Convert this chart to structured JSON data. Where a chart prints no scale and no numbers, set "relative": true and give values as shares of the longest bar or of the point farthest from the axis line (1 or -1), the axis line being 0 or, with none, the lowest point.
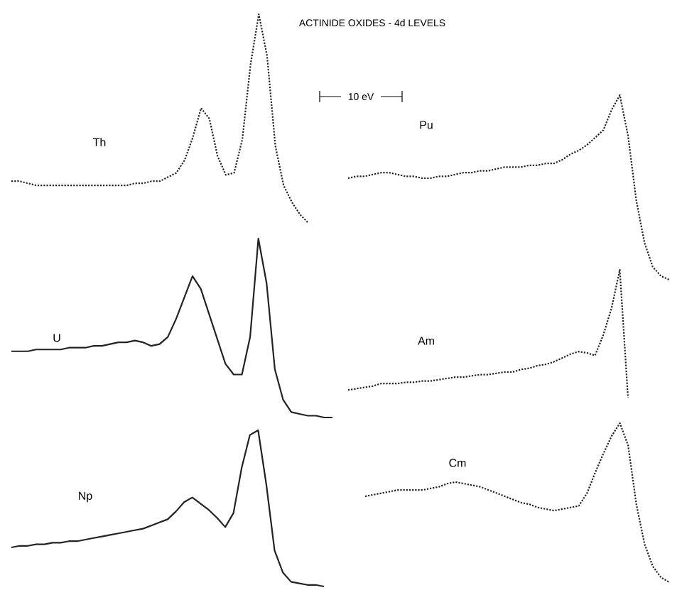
{
  "chart_data": [
    {
      "type": "line",
      "title": "ACTINIDE OXIDES - 4d LEVELS",
      "annotations": [
        "10 eV"
      ],
      "relative": true,
      "tick_labels": false,
      "line_style": "dotted",
      "categories": [
        null,
        null,
        null,
        null,
        null,
        null,
        null,
        null,
        null,
        null,
        null,
        null,
        null,
        null,
        null,
        null,
        null,
        null,
        null,
        null,
        null,
        null,
        null,
        null,
        null,
        null,
        null,
        null,
        null,
        null,
        null,
        null,
        null,
        null,
        null,
        null,
        null
      ],
      "series": [
        {
          "name": "Th",
          "color": "#222222",
          "values": [
            0.2,
            0.2,
            0.19,
            0.18,
            0.18,
            0.18,
            0.18,
            0.18,
            0.18,
            0.18,
            0.18,
            0.18,
            0.18,
            0.18,
            0.18,
            0.19,
            0.19,
            0.2,
            0.2,
            0.22,
            0.24,
            0.3,
            0.41,
            0.55,
            0.5,
            0.32,
            0.23,
            0.24,
            0.4,
            0.76,
            1,
            0.8,
            0.37,
            0.18,
            0.1,
            0.04,
            0
          ]
        }
      ]
    },
    {
      "type": "line",
      "relative": true,
      "tick_labels": false,
      "line_style": "solid",
      "categories": [
        null,
        null,
        null,
        null,
        null,
        null,
        null,
        null,
        null,
        null,
        null,
        null,
        null,
        null,
        null,
        null,
        null,
        null,
        null,
        null,
        null,
        null,
        null,
        null,
        null,
        null,
        null,
        null,
        null,
        null,
        null,
        null,
        null,
        null,
        null,
        null,
        null,
        null,
        null,
        null
      ],
      "series": [
        {
          "name": "U",
          "color": "#222222",
          "values": [
            0.37,
            0.37,
            0.37,
            0.38,
            0.38,
            0.38,
            0.38,
            0.39,
            0.39,
            0.39,
            0.4,
            0.4,
            0.41,
            0.42,
            0.42,
            0.43,
            0.42,
            0.4,
            0.41,
            0.45,
            0.55,
            0.67,
            0.79,
            0.72,
            0.58,
            0.44,
            0.3,
            0.24,
            0.24,
            0.45,
            1,
            0.75,
            0.27,
            0.1,
            0.03,
            0.02,
            0.01,
            0.01,
            0,
            0
          ]
        }
      ]
    },
    {
      "type": "line",
      "relative": true,
      "tick_labels": false,
      "line_style": "solid",
      "categories": [
        null,
        null,
        null,
        null,
        null,
        null,
        null,
        null,
        null,
        null,
        null,
        null,
        null,
        null,
        null,
        null,
        null,
        null,
        null,
        null,
        null,
        null,
        null,
        null,
        null,
        null,
        null,
        null,
        null,
        null,
        null,
        null,
        null,
        null,
        null,
        null,
        null,
        null,
        null
      ],
      "series": [
        {
          "name": "Np",
          "color": "#222222",
          "values": [
            0.25,
            0.26,
            0.26,
            0.27,
            0.27,
            0.28,
            0.28,
            0.29,
            0.29,
            0.3,
            0.31,
            0.32,
            0.33,
            0.34,
            0.35,
            0.36,
            0.37,
            0.39,
            0.41,
            0.43,
            0.48,
            0.54,
            0.57,
            0.53,
            0.49,
            0.44,
            0.38,
            0.47,
            0.76,
            0.97,
            1,
            0.65,
            0.23,
            0.09,
            0.03,
            0.02,
            0.01,
            0.01,
            0
          ]
        }
      ]
    },
    {
      "type": "line",
      "relative": true,
      "tick_labels": false,
      "line_style": "dotted",
      "categories": [
        null,
        null,
        null,
        null,
        null,
        null,
        null,
        null,
        null,
        null,
        null,
        null,
        null,
        null,
        null,
        null,
        null,
        null,
        null,
        null,
        null,
        null,
        null,
        null,
        null,
        null,
        null,
        null,
        null,
        null,
        null,
        null,
        null,
        null,
        null,
        null,
        null,
        null,
        null,
        null
      ],
      "series": [
        {
          "name": "Pu",
          "color": "#222222",
          "values": [
            0.55,
            0.56,
            0.56,
            0.57,
            0.58,
            0.58,
            0.57,
            0.56,
            0.56,
            0.55,
            0.55,
            0.56,
            0.56,
            0.57,
            0.58,
            0.58,
            0.59,
            0.59,
            0.6,
            0.61,
            0.61,
            0.61,
            0.62,
            0.62,
            0.63,
            0.63,
            0.65,
            0.68,
            0.7,
            0.73,
            0.77,
            0.81,
            0.92,
            1,
            0.78,
            0.43,
            0.2,
            0.07,
            0.02,
            0
          ]
        }
      ]
    },
    {
      "type": "line",
      "relative": true,
      "tick_labels": false,
      "line_style": "dotted",
      "categories": [
        null,
        null,
        null,
        null,
        null,
        null,
        null,
        null,
        null,
        null,
        null,
        null,
        null,
        null,
        null,
        null,
        null,
        null,
        null,
        null,
        null,
        null,
        null,
        null,
        null,
        null,
        null,
        null,
        null,
        null,
        null,
        null,
        null,
        null,
        null
      ],
      "series": [
        {
          "name": "Am",
          "color": "#222222",
          "values": [
            0.06,
            0.07,
            0.08,
            0.09,
            0.11,
            0.11,
            0.11,
            0.12,
            0.12,
            0.13,
            0.13,
            0.14,
            0.15,
            0.16,
            0.16,
            0.17,
            0.18,
            0.18,
            0.19,
            0.2,
            0.2,
            0.22,
            0.23,
            0.25,
            0.26,
            0.28,
            0.31,
            0.34,
            0.36,
            0.35,
            0.33,
            0.49,
            0.7,
            1,
            0
          ]
        }
      ]
    },
    {
      "type": "line",
      "relative": true,
      "tick_labels": false,
      "line_style": "dotted",
      "categories": [
        null,
        null,
        null,
        null,
        null,
        null,
        null,
        null,
        null,
        null,
        null,
        null,
        null,
        null,
        null,
        null,
        null,
        null,
        null,
        null,
        null,
        null,
        null,
        null,
        null,
        null,
        null,
        null,
        null,
        null,
        null,
        null,
        null,
        null,
        null,
        null,
        null,
        null
      ],
      "series": [
        {
          "name": "Cm",
          "color": "#222222",
          "values": [
            0.54,
            0.55,
            0.56,
            0.57,
            0.58,
            0.58,
            0.58,
            0.58,
            0.59,
            0.6,
            0.62,
            0.63,
            0.62,
            0.61,
            0.6,
            0.58,
            0.56,
            0.54,
            0.52,
            0.5,
            0.49,
            0.47,
            0.46,
            0.45,
            0.46,
            0.47,
            0.48,
            0.56,
            0.69,
            0.81,
            0.92,
            1,
            0.86,
            0.49,
            0.24,
            0.1,
            0.03,
            0
          ]
        }
      ]
    }
  ]
}
